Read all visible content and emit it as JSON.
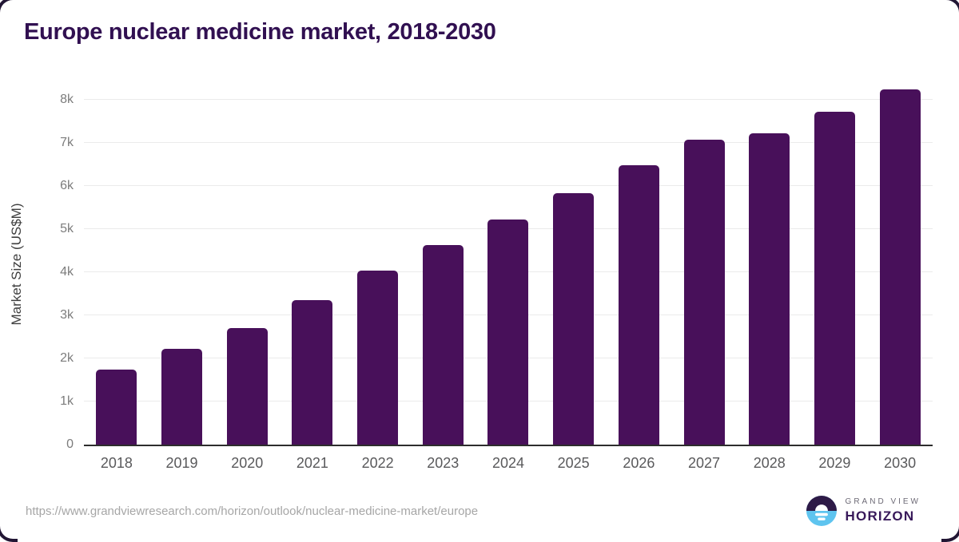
{
  "title": "Europe nuclear medicine market, 2018-2030",
  "chart_data": {
    "type": "bar",
    "title": "Europe nuclear medicine market, 2018-2030",
    "categories": [
      "2018",
      "2019",
      "2020",
      "2021",
      "2022",
      "2023",
      "2024",
      "2025",
      "2026",
      "2027",
      "2028",
      "2029",
      "2030"
    ],
    "values": [
      1750,
      2230,
      2710,
      3360,
      4040,
      4630,
      5220,
      5840,
      6480,
      7070,
      7230,
      7720,
      8250
    ],
    "xlabel": "",
    "ylabel": "Market Size (US$M)",
    "ylim": [
      0,
      8500
    ],
    "ytick_step": 1000,
    "yticks": [
      "0",
      "1k",
      "2k",
      "3k",
      "4k",
      "5k",
      "6k",
      "7k",
      "8k"
    ],
    "grid": true,
    "legend": "none",
    "bar_color": "#48105a"
  },
  "footer": {
    "source_url": "https://www.grandviewresearch.com/horizon/outlook/nuclear-medicine-market/europe",
    "logo": {
      "line1": "GRAND VIEW",
      "line2": "HORIZON",
      "circle_top_color": "#2e1a47",
      "circle_bottom_color": "#5ec4ef"
    }
  },
  "colors": {
    "bar": "#48105a",
    "title": "#311051",
    "axis_line": "#2d2d2d",
    "gridline": "#ebebeb",
    "y_tick_text": "#7c7c7c",
    "x_label_text": "#59595b",
    "url_text": "#a6a6a6"
  }
}
